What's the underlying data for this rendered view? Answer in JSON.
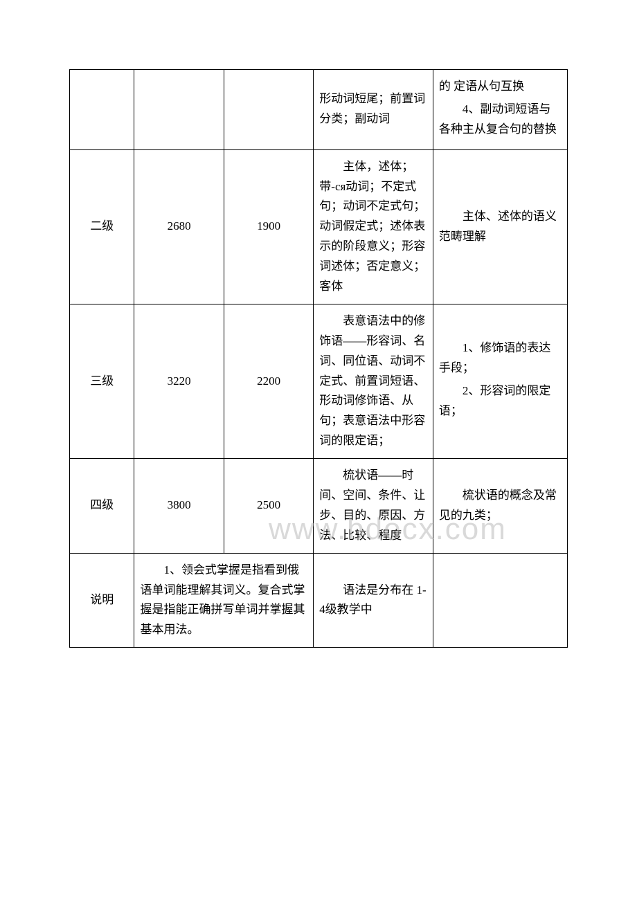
{
  "watermark": "www.bdocx.com",
  "table": {
    "rows": [
      {
        "col1": "",
        "col2": "",
        "col3": "",
        "col4": "形动词短尾；前置词分类；副动词",
        "col5_parts": [
          "的 定语从句互换",
          "　　4、副动词短语与各种主从复合句的替换"
        ]
      },
      {
        "col1": "二级",
        "col2": "2680",
        "col3": "1900",
        "col4": "　　主体，述体；带-ся动词；不定式句；动词不定式句；动词假定式；述体表示的阶段意义；形容词述体；否定意义；客体",
        "col5": "　　主体、述体的语义范畴理解"
      },
      {
        "col1": "三级",
        "col2": "3220",
        "col3": "2200",
        "col4": "　　表意语法中的修饰语——形容词、名词、同位语、动词不定式、前置词短语、形动词修饰语、从句；表意语法中形容词的限定语；",
        "col5_parts": [
          "　　1、修饰语的表达手段；",
          "　　2、形容词的限定语；"
        ]
      },
      {
        "col1": "四级",
        "col2": "3800",
        "col3": "2500",
        "col4": "　　梳状语——时间、空间、条件、让步、目的、原因、方法、比较、程度",
        "col5": "　　梳状语的概念及常见的九类；"
      },
      {
        "col1": "说明",
        "col23": "　　1、领会式掌握是指看到俄语单词能理解其词义。复合式掌握是指能正确拼写单词并掌握其基本用法。",
        "col4": "　　语法是分布在 1-4级教学中",
        "col5": ""
      }
    ]
  }
}
